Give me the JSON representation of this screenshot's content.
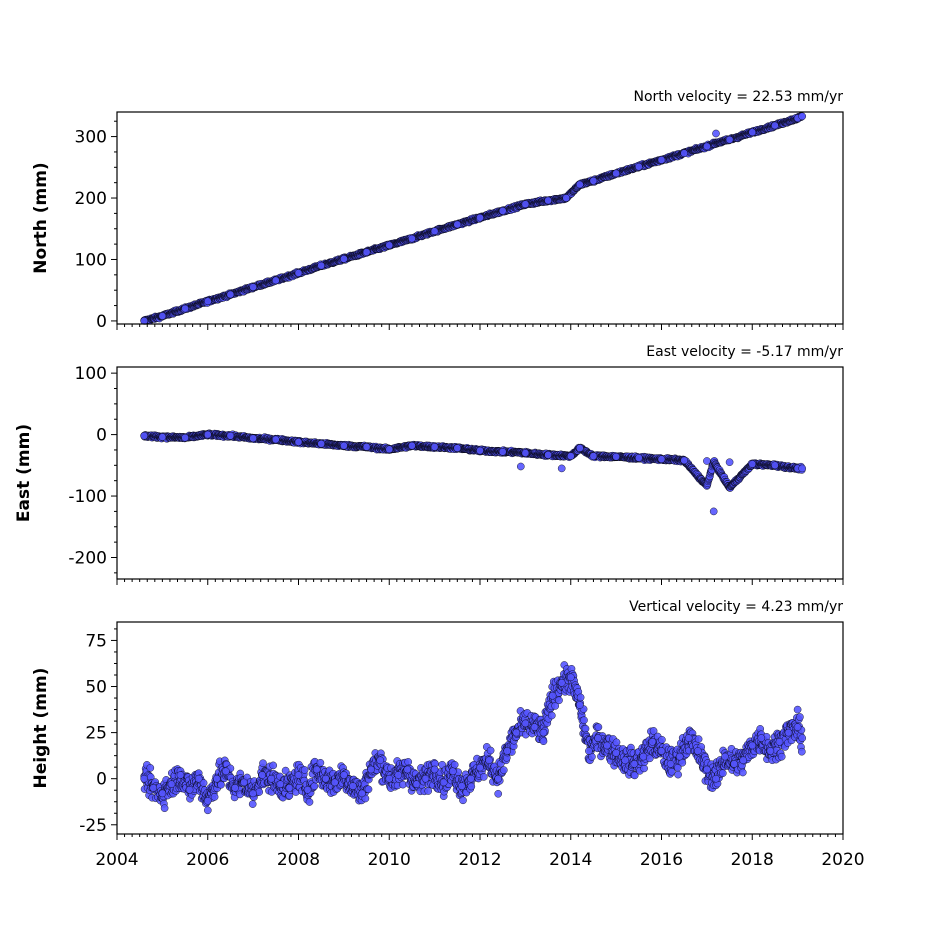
{
  "chart_data": [
    {
      "type": "scatter",
      "title": "North velocity = 22.53 mm/yr",
      "xlabel": "",
      "ylabel": "North (mm)",
      "xlim": [
        2004,
        2020
      ],
      "ylim": [
        -5,
        340
      ],
      "yticks": [
        0,
        100,
        200,
        300
      ],
      "xticks": [
        2004,
        2006,
        2008,
        2010,
        2012,
        2014,
        2016,
        2018,
        2020
      ],
      "tick_labels_visible_x": false,
      "grid": false,
      "marker_color": "#5555ff",
      "marker_edge_color": "#000000",
      "series": [
        {
          "x": [
            2004.6,
            2005.0,
            2005.5,
            2006.0,
            2006.5,
            2007.0,
            2007.5,
            2008.0,
            2008.5,
            2009.0,
            2009.5,
            2010.0,
            2010.5,
            2011.0,
            2011.5,
            2012.0,
            2012.5,
            2013.0,
            2013.5,
            2013.9,
            2014.2,
            2014.5,
            2015.0,
            2015.5,
            2016.0,
            2016.5,
            2017.0,
            2017.2,
            2017.5,
            2018.0,
            2018.5,
            2019.0,
            2019.1
          ],
          "y": [
            0,
            8,
            20,
            32,
            43,
            55,
            66,
            78,
            90,
            101,
            112,
            123,
            134,
            146,
            157,
            168,
            179,
            190,
            196,
            200,
            222,
            228,
            240,
            251,
            262,
            273,
            284,
            305,
            295,
            307,
            318,
            330,
            333
          ]
        }
      ]
    },
    {
      "type": "scatter",
      "title": "East velocity = -5.17 mm/yr",
      "xlabel": "",
      "ylabel": "East (mm)",
      "xlim": [
        2004,
        2020
      ],
      "ylim": [
        -235,
        110
      ],
      "yticks": [
        -200,
        -100,
        0,
        100
      ],
      "xticks": [
        2004,
        2006,
        2008,
        2010,
        2012,
        2014,
        2016,
        2018,
        2020
      ],
      "tick_labels_visible_x": false,
      "grid": false,
      "marker_color": "#5555ff",
      "marker_edge_color": "#000000",
      "series": [
        {
          "x": [
            2004.6,
            2005.0,
            2005.5,
            2006.0,
            2006.5,
            2007.0,
            2007.5,
            2008.0,
            2008.5,
            2009.0,
            2009.5,
            2010.0,
            2010.5,
            2011.0,
            2011.5,
            2012.0,
            2012.5,
            2012.9,
            2013.0,
            2013.5,
            2013.8,
            2014.0,
            2014.2,
            2014.5,
            2015.0,
            2015.5,
            2016.0,
            2016.5,
            2017.0,
            2017.15,
            2017.5,
            2018.0,
            2018.5,
            2019.0,
            2019.1
          ],
          "y": [
            -2,
            -4,
            -5,
            0,
            -2,
            -6,
            -8,
            -12,
            -15,
            -18,
            -20,
            -24,
            -18,
            -20,
            -22,
            -26,
            -28,
            -52,
            -30,
            -33,
            -55,
            -35,
            -22,
            -35,
            -36,
            -38,
            -40,
            -42,
            -43,
            -125,
            -45,
            -48,
            -50,
            -55,
            -55
          ]
        }
      ]
    },
    {
      "type": "scatter",
      "title": "Vertical velocity = 4.23 mm/yr",
      "xlabel": "",
      "ylabel": "Height (mm)",
      "xlim": [
        2004,
        2020
      ],
      "ylim": [
        -30,
        85
      ],
      "yticks": [
        -25,
        0,
        25,
        50,
        75
      ],
      "xticks": [
        2004,
        2006,
        2008,
        2010,
        2012,
        2014,
        2016,
        2018,
        2020
      ],
      "tick_labels_visible_x": true,
      "grid": false,
      "marker_color": "#5555ff",
      "marker_edge_color": "#000000",
      "series": [
        {
          "x": [
            2004.6,
            2004.8,
            2005.0,
            2005.2,
            2005.4,
            2005.6,
            2005.8,
            2006.0,
            2006.2,
            2006.4,
            2006.6,
            2006.8,
            2007.0,
            2007.2,
            2007.4,
            2007.6,
            2007.8,
            2008.0,
            2008.2,
            2008.4,
            2008.6,
            2008.8,
            2009.0,
            2009.2,
            2009.4,
            2009.6,
            2009.8,
            2010.0,
            2010.2,
            2010.4,
            2010.6,
            2010.8,
            2011.0,
            2011.2,
            2011.4,
            2011.6,
            2011.8,
            2012.0,
            2012.2,
            2012.4,
            2012.6,
            2012.8,
            2013.0,
            2013.2,
            2013.4,
            2013.6,
            2013.8,
            2014.0,
            2014.2,
            2014.4,
            2014.6,
            2014.8,
            2015.0,
            2015.2,
            2015.4,
            2015.6,
            2015.8,
            2016.0,
            2016.2,
            2016.4,
            2016.6,
            2016.8,
            2017.0,
            2017.2,
            2017.4,
            2017.6,
            2017.8,
            2018.0,
            2018.2,
            2018.4,
            2018.6,
            2018.8,
            2019.0,
            2019.1
          ],
          "y": [
            0,
            -5,
            -8,
            -3,
            2,
            -6,
            0,
            -12,
            0,
            4,
            -5,
            -2,
            -8,
            2,
            0,
            -3,
            -5,
            2,
            -6,
            5,
            0,
            -2,
            2,
            -4,
            -8,
            5,
            10,
            0,
            2,
            5,
            -3,
            0,
            5,
            -2,
            4,
            -4,
            0,
            6,
            10,
            0,
            15,
            25,
            30,
            28,
            25,
            45,
            52,
            55,
            40,
            15,
            22,
            18,
            14,
            10,
            8,
            12,
            20,
            15,
            8,
            12,
            22,
            15,
            5,
            0,
            12,
            8,
            10,
            18,
            22,
            15,
            20,
            25,
            28,
            22
          ]
        }
      ]
    }
  ]
}
